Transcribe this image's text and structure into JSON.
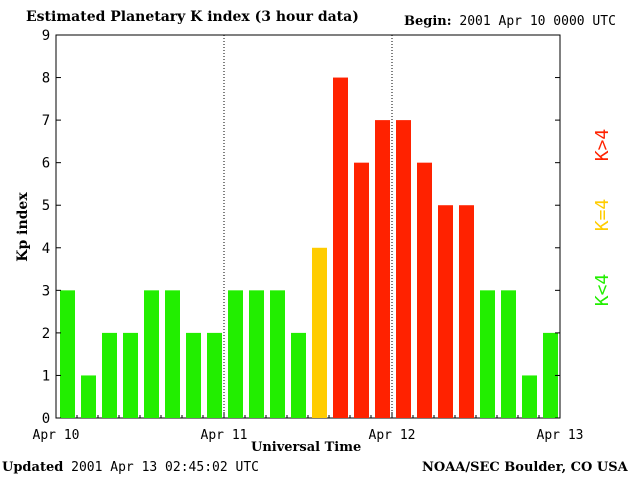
{
  "header": {
    "title": "Estimated Planetary K index (3 hour data)",
    "begin_label": "Begin:",
    "begin_value": "2001 Apr 10 0000 UTC"
  },
  "footer": {
    "updated_label": "Updated",
    "updated_value": "2001 Apr 13 02:45:02 UTC",
    "credit": "NOAA/SEC Boulder, CO USA"
  },
  "legend": [
    {
      "label": "K<4",
      "color": "#22ee00"
    },
    {
      "label": "K=4",
      "color": "#ffcc00"
    },
    {
      "label": "K>4",
      "color": "#ff2200"
    }
  ],
  "chart_data": {
    "type": "bar",
    "title": "Estimated Planetary K index (3 hour data)",
    "xlabel": "Universal Time",
    "ylabel": "Kp index",
    "ylim": [
      0,
      9
    ],
    "yticks": [
      0,
      1,
      2,
      3,
      4,
      5,
      6,
      7,
      8,
      9
    ],
    "xtick_labels": [
      "Apr 10",
      "Apr 11",
      "Apr 12",
      "Apr 13"
    ],
    "interval_hours": 3,
    "values": [
      3,
      1,
      2,
      2,
      3,
      3,
      2,
      2,
      3,
      3,
      3,
      2,
      4,
      8,
      6,
      7,
      7,
      6,
      5,
      5,
      3,
      3,
      1,
      2
    ],
    "colors": {
      "below": "#22ee00",
      "equal": "#ffcc00",
      "above": "#ff2200"
    }
  }
}
